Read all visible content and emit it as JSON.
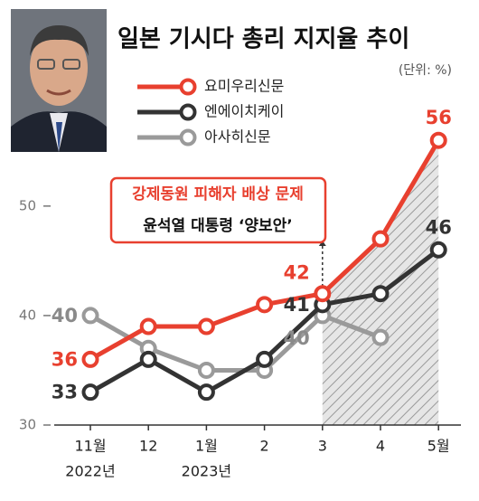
{
  "chart_data": {
    "type": "line",
    "title": "일본 기시다 총리 지지율 추이",
    "unit_label": "(단위: %)",
    "annotation": [
      "강제동원 피해자 배상 문제",
      "윤석열 대통령 ‘양보안’"
    ],
    "categories": [
      "11월",
      "12",
      "1월",
      "2",
      "3",
      "4",
      "5월"
    ],
    "x_sublabels": [
      "2022년",
      null,
      "2023년",
      null,
      null,
      null,
      null
    ],
    "series": [
      {
        "name": "요미우리신문",
        "color": "#e8402f",
        "values": [
          36,
          39,
          39,
          41,
          42,
          47,
          56
        ],
        "value_labels": [
          "36",
          null,
          null,
          null,
          "42",
          null,
          "56"
        ]
      },
      {
        "name": "엔에이치케이",
        "color": "#333333",
        "values": [
          33,
          36,
          33,
          36,
          41,
          42,
          46
        ],
        "value_labels": [
          "33",
          null,
          null,
          null,
          "41",
          null,
          "46"
        ]
      },
      {
        "name": "아사히신문",
        "color": "#9a9a9a",
        "values": [
          40,
          37,
          35,
          35,
          40,
          38,
          null
        ],
        "value_labels": [
          "40",
          null,
          null,
          null,
          "40",
          null,
          null
        ]
      }
    ],
    "ylim": [
      30,
      58
    ],
    "yticks": [
      30,
      40,
      50
    ]
  }
}
